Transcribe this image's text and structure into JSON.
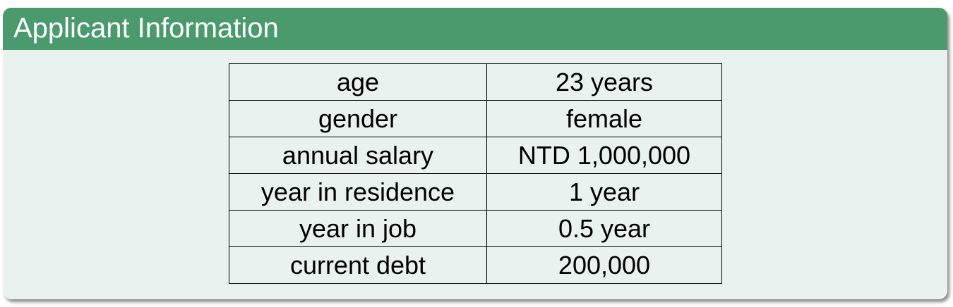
{
  "block": {
    "title": "Applicant Information"
  },
  "table": {
    "rows": [
      {
        "label": "age",
        "value": "23 years"
      },
      {
        "label": "gender",
        "value": "female"
      },
      {
        "label": "annual salary",
        "value": "NTD 1,000,000"
      },
      {
        "label": "year in residence",
        "value": "1 year"
      },
      {
        "label": "year in job",
        "value": "0.5 year"
      },
      {
        "label": "current debt",
        "value": "200,000"
      }
    ]
  },
  "colors": {
    "header_bg": "#4a9a6e",
    "body_bg": "#e9f2ee",
    "header_text": "#ffffff"
  }
}
